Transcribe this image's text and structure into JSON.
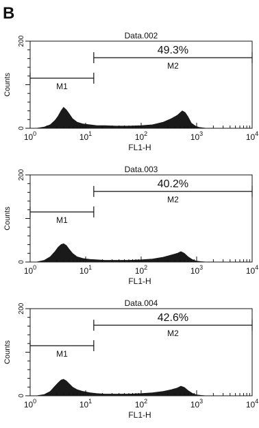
{
  "panel_letter": "B",
  "chart_data": [
    {
      "type": "area",
      "title": "Data.002",
      "xlabel": "FL1-H",
      "ylabel": "Counts",
      "x_scale": "log",
      "xlim": [
        1,
        10000
      ],
      "ylim": [
        0,
        200
      ],
      "x_ticks": [
        1,
        10,
        100,
        1000,
        10000
      ],
      "x_tick_labels": [
        {
          "base": "10",
          "exp": "0"
        },
        {
          "base": "10",
          "exp": "1"
        },
        {
          "base": "10",
          "exp": "2"
        },
        {
          "base": "10",
          "exp": "3"
        },
        {
          "base": "10",
          "exp": "4"
        }
      ],
      "y_tick_labels": [
        "0",
        "200"
      ],
      "markers": [
        {
          "name": "M1",
          "x_start": 1,
          "x_end": 14,
          "y_level": 115
        },
        {
          "name": "M2",
          "x_start": 14,
          "x_end": 10000,
          "y_level": 162
        }
      ],
      "percentage_label": "49.3%",
      "series": [
        {
          "x": [
            1,
            1.3,
            1.8,
            2.3,
            2.8,
            3.2,
            3.6,
            4.0,
            4.5,
            5.0,
            5.8,
            7,
            9,
            12,
            16,
            22,
            35,
            60,
            100,
            160,
            250,
            350,
            450,
            550,
            620,
            700,
            800,
            950,
            1100,
            1300,
            1500
          ],
          "y": [
            0,
            0,
            3,
            8,
            18,
            28,
            40,
            48,
            42,
            34,
            22,
            14,
            10,
            8,
            6,
            6,
            5,
            5,
            6,
            8,
            14,
            22,
            30,
            40,
            36,
            26,
            12,
            5,
            2,
            1,
            0
          ]
        }
      ]
    },
    {
      "type": "area",
      "title": "Data.003",
      "xlabel": "FL1-H",
      "ylabel": "Counts",
      "x_scale": "log",
      "xlim": [
        1,
        10000
      ],
      "ylim": [
        0,
        200
      ],
      "x_ticks": [
        1,
        10,
        100,
        1000,
        10000
      ],
      "x_tick_labels": [
        {
          "base": "10",
          "exp": "0"
        },
        {
          "base": "10",
          "exp": "1"
        },
        {
          "base": "10",
          "exp": "2"
        },
        {
          "base": "10",
          "exp": "3"
        },
        {
          "base": "10",
          "exp": "4"
        }
      ],
      "y_tick_labels": [
        "0",
        "200"
      ],
      "markers": [
        {
          "name": "M1",
          "x_start": 1,
          "x_end": 14,
          "y_level": 115
        },
        {
          "name": "M2",
          "x_start": 14,
          "x_end": 10000,
          "y_level": 162
        }
      ],
      "percentage_label": "40.2%",
      "series": [
        {
          "x": [
            1,
            1.3,
            1.8,
            2.3,
            2.8,
            3.2,
            3.6,
            4.0,
            4.5,
            5.0,
            5.8,
            7,
            9,
            12,
            16,
            22,
            35,
            60,
            100,
            160,
            250,
            350,
            450,
            520,
            600,
            700,
            850,
            1000,
            1200,
            1500
          ],
          "y": [
            0,
            0,
            4,
            12,
            24,
            34,
            40,
            42,
            38,
            30,
            20,
            12,
            8,
            6,
            5,
            4,
            4,
            4,
            5,
            7,
            11,
            16,
            20,
            24,
            20,
            12,
            5,
            2,
            1,
            0
          ]
        }
      ]
    },
    {
      "type": "area",
      "title": "Data.004",
      "xlabel": "FL1-H",
      "ylabel": "Counts",
      "x_scale": "log",
      "xlim": [
        1,
        10000
      ],
      "ylim": [
        0,
        200
      ],
      "x_ticks": [
        1,
        10,
        100,
        1000,
        10000
      ],
      "x_tick_labels": [
        {
          "base": "10",
          "exp": "0"
        },
        {
          "base": "10",
          "exp": "1"
        },
        {
          "base": "10",
          "exp": "2"
        },
        {
          "base": "10",
          "exp": "3"
        },
        {
          "base": "10",
          "exp": "4"
        }
      ],
      "y_tick_labels": [
        "0",
        "200"
      ],
      "markers": [
        {
          "name": "M1",
          "x_start": 1,
          "x_end": 14,
          "y_level": 115
        },
        {
          "name": "M2",
          "x_start": 14,
          "x_end": 10000,
          "y_level": 162
        }
      ],
      "percentage_label": "42.6%",
      "series": [
        {
          "x": [
            1,
            1.3,
            1.8,
            2.3,
            2.8,
            3.2,
            3.6,
            4.0,
            4.5,
            5.0,
            5.8,
            7,
            9,
            12,
            16,
            22,
            35,
            60,
            100,
            160,
            250,
            350,
            450,
            520,
            600,
            700,
            850,
            1000,
            1200,
            1500
          ],
          "y": [
            0,
            0,
            3,
            10,
            22,
            30,
            36,
            38,
            34,
            28,
            20,
            14,
            10,
            7,
            5,
            4,
            4,
            4,
            5,
            7,
            10,
            14,
            18,
            22,
            19,
            12,
            5,
            2,
            1,
            0
          ]
        }
      ]
    }
  ]
}
